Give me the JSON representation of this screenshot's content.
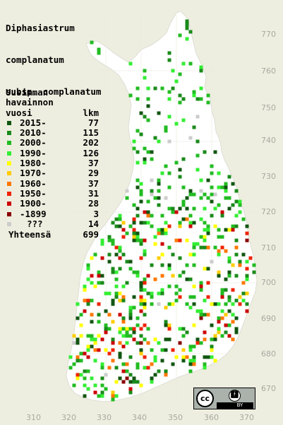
{
  "title": {
    "line1": "Diphasiastrum",
    "line2": "complanatum",
    "line3": "subsp. complanatum"
  },
  "legend": {
    "header1": "Uusimman",
    "header2": "havainnon",
    "header3_left": "vuosi",
    "header3_right": "lkm",
    "items": [
      {
        "label": "2015-",
        "count": "77",
        "color": "#115511"
      },
      {
        "label": "2010-",
        "count": "115",
        "color": "#1a8a1a"
      },
      {
        "label": "2000-",
        "count": "202",
        "color": "#22bb22"
      },
      {
        "label": "1990-",
        "count": "126",
        "color": "#33ee33"
      },
      {
        "label": "1980-",
        "count": "37",
        "color": "#ffff00"
      },
      {
        "label": "1970-",
        "count": "29",
        "color": "#ffcc00"
      },
      {
        "label": "1960-",
        "count": "37",
        "color": "#ff7700"
      },
      {
        "label": "1950-",
        "count": "31",
        "color": "#ee2200"
      },
      {
        "label": "1900-",
        "count": "28",
        "color": "#cc0000"
      },
      {
        "label": "-1899",
        "count": "3",
        "color": "#880000"
      },
      {
        "label": "???",
        "count": "14",
        "color": "#cccccc"
      }
    ],
    "total_label": "Yhteensä",
    "total_count": "699"
  },
  "axes": {
    "y_labels": [
      "770",
      "760",
      "750",
      "740",
      "730",
      "720",
      "710",
      "700",
      "690",
      "680",
      "670"
    ],
    "x_labels": [
      "310",
      "320",
      "330",
      "340",
      "350",
      "360",
      "370"
    ]
  },
  "license": {
    "cc_text": "cc",
    "by_icon": "person-icon",
    "by_text": "BY"
  }
}
